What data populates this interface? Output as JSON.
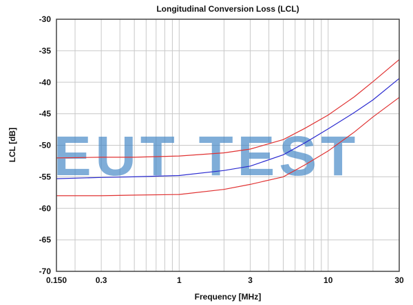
{
  "chart_data": {
    "type": "line",
    "title": "Longitudinal Conversion Loss (LCL)",
    "xlabel": "Frequency [MHz]",
    "ylabel": "LCL [dB]",
    "x_scale": "log",
    "xlim": [
      0.15,
      30
    ],
    "ylim": [
      -70,
      -30
    ],
    "x_ticks": [
      0.15,
      0.3,
      1,
      3,
      10,
      30
    ],
    "x_tick_labels": [
      "0.150",
      "0.3",
      "1",
      "3",
      "10",
      "30"
    ],
    "y_ticks": [
      -30,
      -35,
      -40,
      -45,
      -50,
      -55,
      -60,
      -65,
      -70
    ],
    "y_tick_labels": [
      "-30",
      "-35",
      "-40",
      "-45",
      "-50",
      "-55",
      "-60",
      "-65",
      "-70"
    ],
    "grid": true,
    "x": [
      0.15,
      0.3,
      0.5,
      1,
      2,
      3,
      5,
      7,
      10,
      15,
      20,
      30
    ],
    "series": [
      {
        "color": "#e03030",
        "values": [
          -52.0,
          -51.9,
          -51.9,
          -51.7,
          -51.2,
          -50.6,
          -49.1,
          -47.3,
          -45.2,
          -42.3,
          -39.9,
          -36.4
        ]
      },
      {
        "color": "#2a2ad0",
        "values": [
          -55.3,
          -55.1,
          -55.0,
          -54.8,
          -54.0,
          -53.3,
          -51.5,
          -49.6,
          -47.4,
          -44.8,
          -42.8,
          -39.4
        ]
      },
      {
        "color": "#e03030",
        "values": [
          -58.0,
          -58.0,
          -57.9,
          -57.8,
          -57.0,
          -56.2,
          -55.0,
          -53.1,
          -50.9,
          -47.9,
          -45.5,
          -42.4
        ]
      }
    ]
  },
  "watermark": "EUT TEST"
}
